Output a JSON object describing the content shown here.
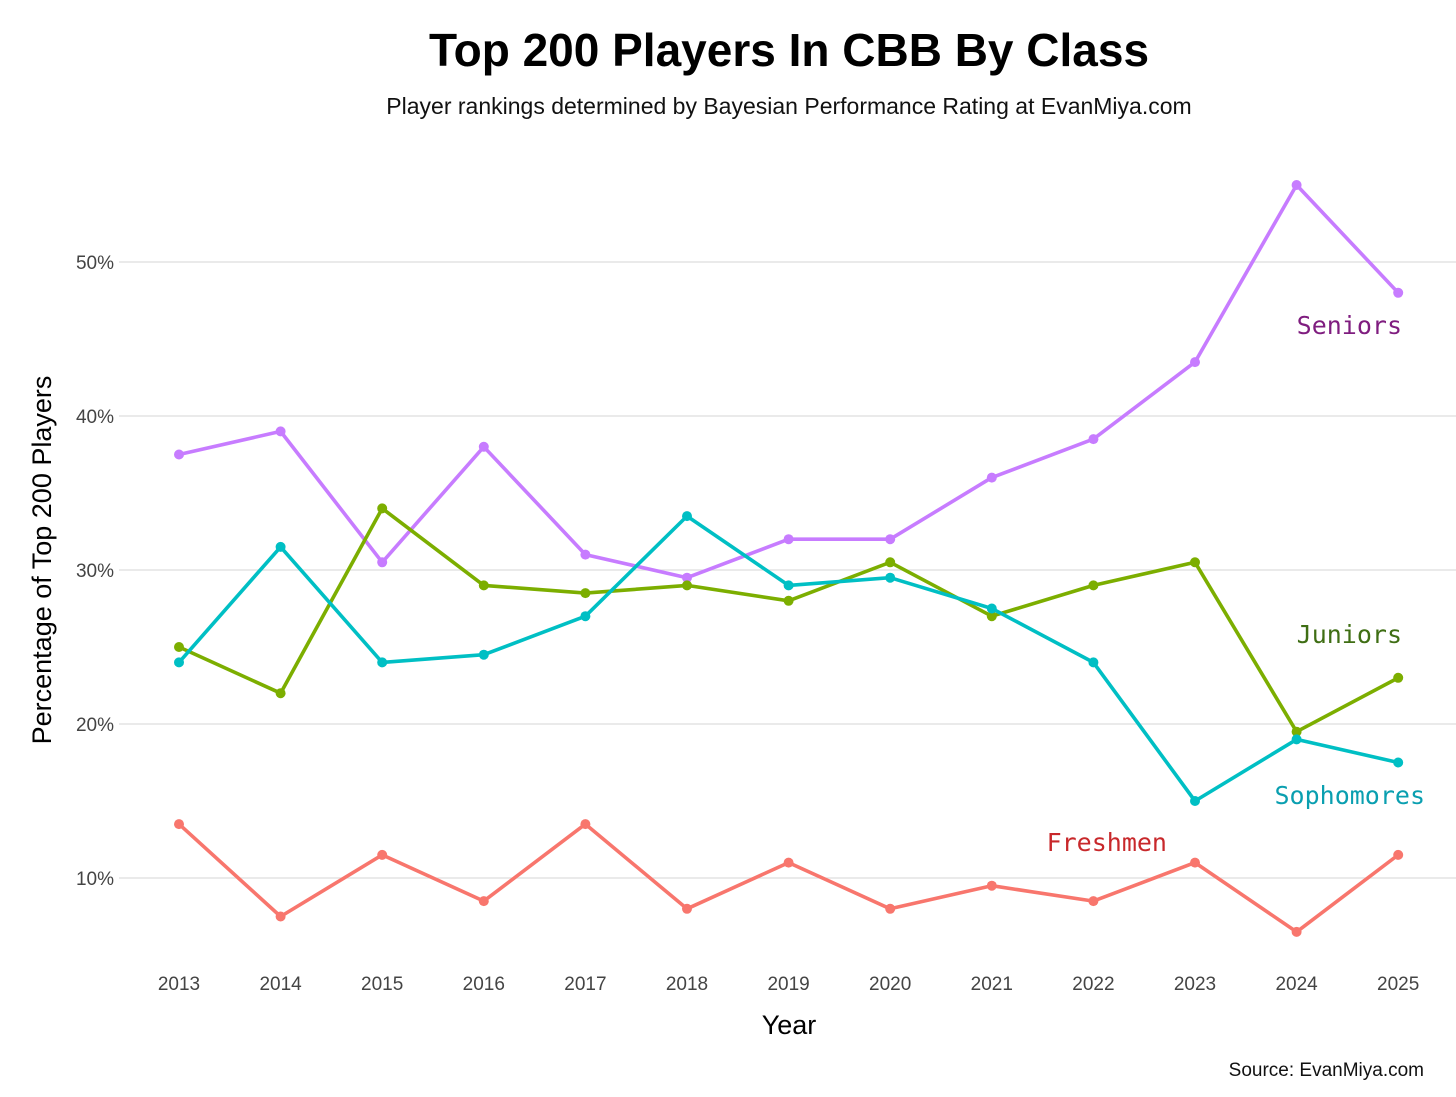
{
  "chart_data": {
    "type": "line",
    "title": "Top 200 Players In CBB By Class",
    "subtitle": "Player rankings determined by Bayesian Performance Rating at EvanMiya.com",
    "xlabel": "Year",
    "ylabel": "Percentage of Top 200 Players",
    "source": "Source: EvanMiya.com",
    "x": [
      2013,
      2014,
      2015,
      2016,
      2017,
      2018,
      2019,
      2020,
      2021,
      2022,
      2023,
      2024,
      2025
    ],
    "x_tick_labels": [
      "2013",
      "2014",
      "2015",
      "2016",
      "2017",
      "2018",
      "2019",
      "2020",
      "2021",
      "2022",
      "2023",
      "2024",
      "2025"
    ],
    "y_ticks": [
      10,
      20,
      30,
      40,
      50
    ],
    "y_tick_labels": [
      "10%",
      "20%",
      "30%",
      "40%",
      "50%"
    ],
    "ylim": [
      4.8,
      57.5
    ],
    "grid": "horizontal",
    "legend": "none",
    "series": [
      {
        "name": "Seniors",
        "color": "#c77cff",
        "label_color": "#7f1d7f",
        "values": [
          37.5,
          39,
          30.5,
          38,
          31,
          29.5,
          32,
          32,
          36,
          38.5,
          43.5,
          55,
          48
        ]
      },
      {
        "name": "Juniors",
        "color": "#7cae00",
        "label_color": "#3f6e14",
        "values": [
          25,
          22,
          34,
          29,
          28.5,
          29,
          28,
          30.5,
          27,
          29,
          30.5,
          19.5,
          23
        ]
      },
      {
        "name": "Sophomores",
        "color": "#00bfc4",
        "label_color": "#0a9fb0",
        "values": [
          24,
          31.5,
          24,
          24.5,
          27,
          33.5,
          29,
          29.5,
          27.5,
          24,
          15,
          19,
          17.5
        ]
      },
      {
        "name": "Freshmen",
        "color": "#f8766d",
        "label_color": "#c8282b",
        "values": [
          13.5,
          7.5,
          11.5,
          8.5,
          13.5,
          8,
          11,
          8,
          9.5,
          8.5,
          11,
          6.5,
          11.5
        ]
      }
    ]
  }
}
